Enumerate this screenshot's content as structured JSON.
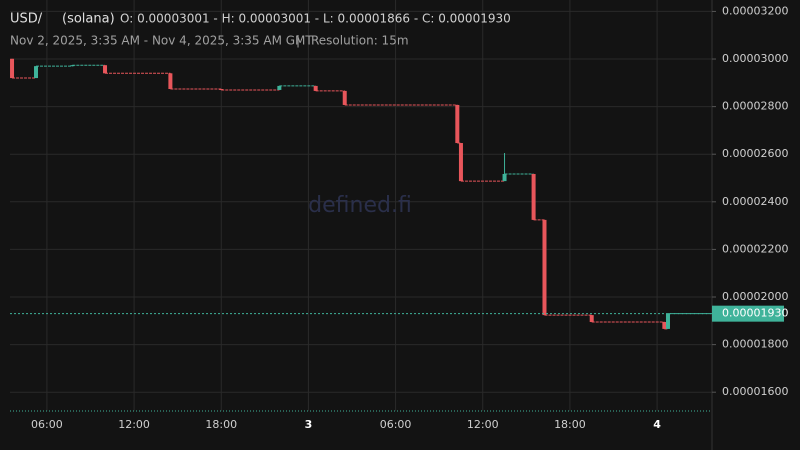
{
  "chart_data": {
    "type": "candlestick",
    "title": "USD/",
    "subtitle": "(solana)",
    "ohlc_text": "O: 0.00003001 - H: 0.00003001 - L: 0.00001866 - C: 0.00001930",
    "range_text": "Nov 2, 2025, 3:35 AM - Nov 4, 2025, 3:35 AM GMT",
    "separator": "|",
    "resolution_text": "Resolution: 15m",
    "watermark": "defined.fi",
    "up_color": "#3fb39a",
    "down_color": "#e8565b",
    "grid": true,
    "x": [
      3.6,
      5.25,
      7.75,
      10.0,
      14.5,
      18.0,
      22.0,
      24.5,
      26.5,
      34.25,
      34.5,
      37.5,
      39.5,
      40.25,
      43.5,
      48.5,
      48.75
    ],
    "open": [
      3.001e-05,
      2.92e-05,
      2.97e-05,
      2.974e-05,
      2.94e-05,
      2.874e-05,
      2.87e-05,
      2.887e-05,
      2.866e-05,
      2.807e-05,
      2.647e-05,
      2.487e-05,
      2.517e-05,
      2.324e-05,
      1.924e-05,
      1.895e-05,
      1.866e-05
    ],
    "high": [
      3.001e-05,
      2.97e-05,
      2.974e-05,
      2.974e-05,
      2.94e-05,
      2.874e-05,
      2.887e-05,
      2.887e-05,
      2.866e-05,
      2.807e-05,
      2.647e-05,
      2.605e-05,
      2.517e-05,
      2.324e-05,
      1.924e-05,
      1.895e-05,
      1.93e-05
    ],
    "low": [
      2.92e-05,
      2.92e-05,
      2.97e-05,
      2.94e-05,
      2.874e-05,
      2.87e-05,
      2.87e-05,
      2.866e-05,
      2.807e-05,
      2.647e-05,
      2.487e-05,
      2.487e-05,
      2.324e-05,
      1.924e-05,
      1.895e-05,
      1.866e-05,
      1.866e-05
    ],
    "close": [
      2.92e-05,
      2.97e-05,
      2.974e-05,
      2.94e-05,
      2.874e-05,
      2.87e-05,
      2.887e-05,
      2.866e-05,
      2.807e-05,
      2.647e-05,
      2.487e-05,
      2.517e-05,
      2.324e-05,
      1.924e-05,
      1.895e-05,
      1.866e-05,
      1.93e-05
    ],
    "xlim": [
      3.46,
      51.78
    ],
    "xticks": [
      {
        "value": 6,
        "label": "06:00"
      },
      {
        "value": 12,
        "label": "12:00"
      },
      {
        "value": 18,
        "label": "18:00"
      },
      {
        "value": 24,
        "label": "3"
      },
      {
        "value": 30,
        "label": "06:00"
      },
      {
        "value": 36,
        "label": "12:00"
      },
      {
        "value": 42,
        "label": "18:00"
      },
      {
        "value": 48,
        "label": "4"
      }
    ],
    "ylim": [
      1.521e-05,
      3.248e-05
    ],
    "yticks": [
      {
        "value": 1.6e-05,
        "label": "0.00001600"
      },
      {
        "value": 1.8e-05,
        "label": "0.00001800"
      },
      {
        "value": 2e-05,
        "label": "0.00002000"
      },
      {
        "value": 2.2e-05,
        "label": "0.00002200"
      },
      {
        "value": 2.4e-05,
        "label": "0.00002400"
      },
      {
        "value": 2.6e-05,
        "label": "0.00002600"
      },
      {
        "value": 2.8e-05,
        "label": "0.00002800"
      },
      {
        "value": 3e-05,
        "label": "0.00003000"
      },
      {
        "value": 3.2e-05,
        "label": "0.00003200"
      }
    ],
    "last_price": {
      "value": 1.93e-05,
      "label": "0.00001930"
    }
  }
}
